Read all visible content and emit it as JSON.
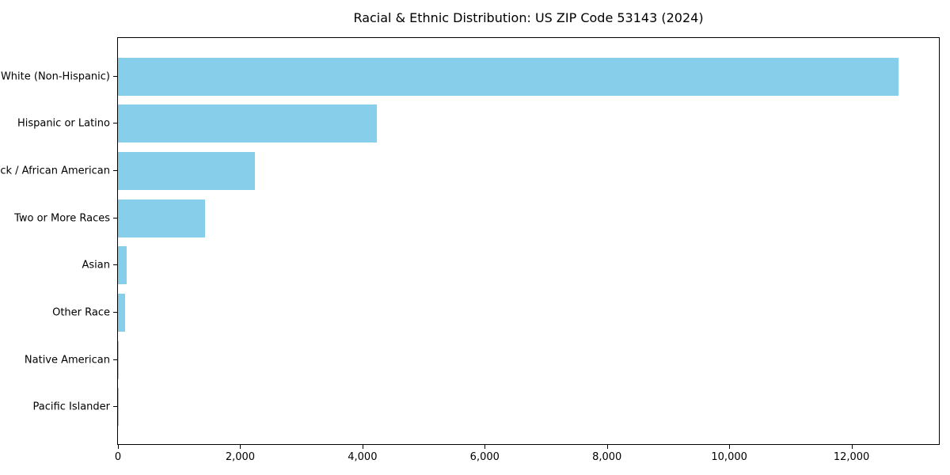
{
  "title": "Racial & Ethnic Distribution: US ZIP Code 53143 (2024)",
  "colors": {
    "bar": "#87CEEB",
    "axis": "#000000",
    "background": "#FFFFFF"
  },
  "chart_data": {
    "type": "bar",
    "orientation": "horizontal",
    "title": "Racial & Ethnic Distribution: US ZIP Code 53143 (2024)",
    "xlabel": "",
    "ylabel": "",
    "categories": [
      "White (Non-Hispanic)",
      "Hispanic or Latino",
      "Black / African American",
      "Two or More Races",
      "Asian",
      "Other Race",
      "Native American",
      "Pacific Islander"
    ],
    "values": [
      12770,
      4240,
      2240,
      1430,
      140,
      115,
      15,
      5
    ],
    "xlim": [
      0,
      13430
    ],
    "xticks": [
      0,
      2000,
      4000,
      6000,
      8000,
      10000,
      12000
    ],
    "xtick_labels": [
      "0",
      "2,000",
      "4,000",
      "6,000",
      "8,000",
      "10,000",
      "12,000"
    ],
    "bar_color": "#87CEEB",
    "grid": false,
    "legend": "none"
  }
}
